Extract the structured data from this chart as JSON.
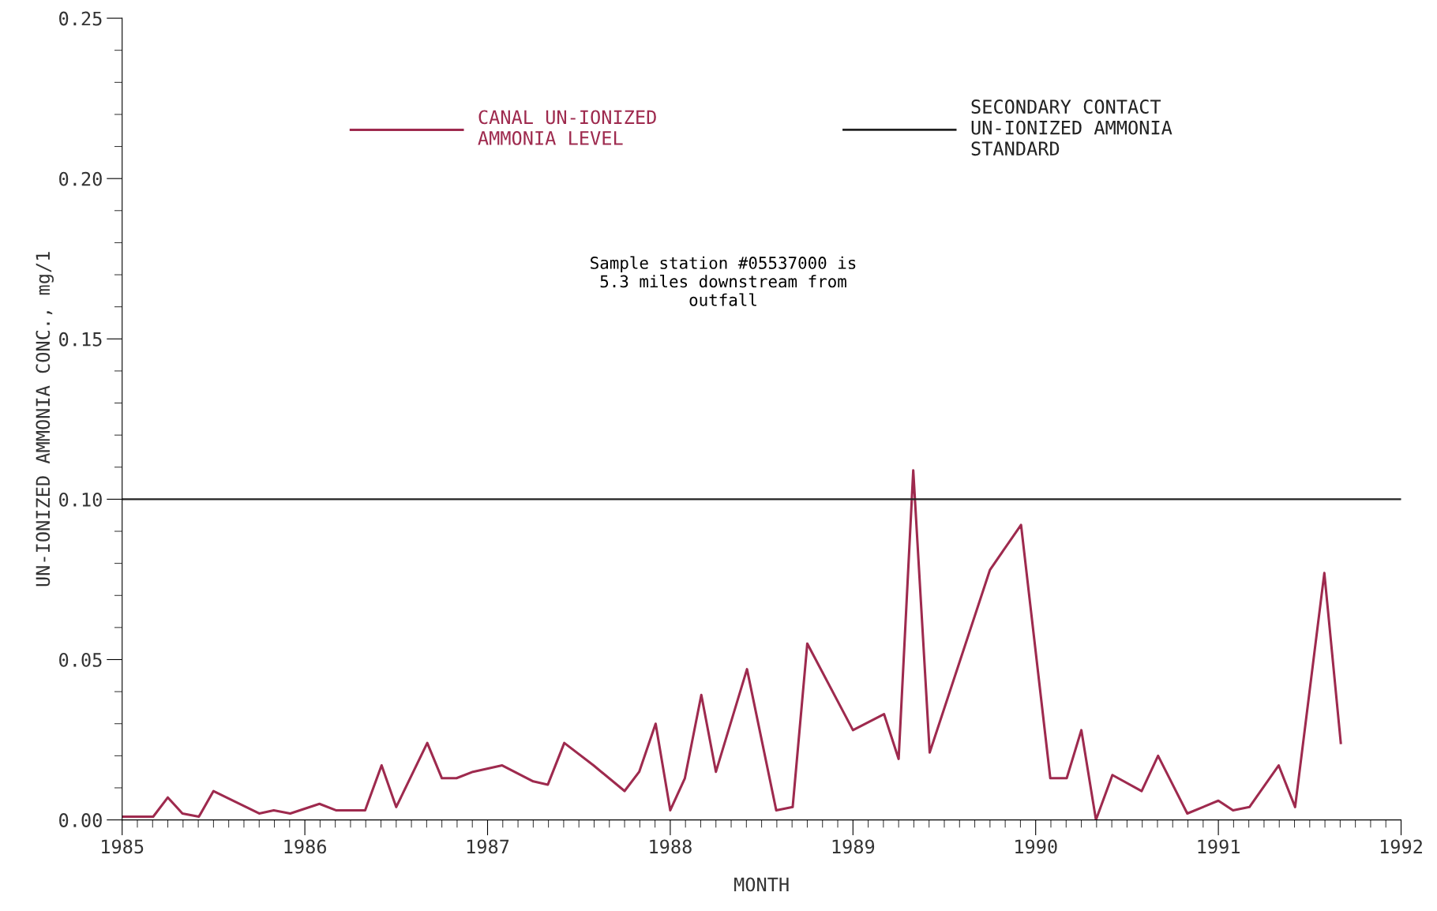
{
  "chart_data": {
    "type": "line",
    "xlabel": "MONTH",
    "ylabel": "UN-IONIZED AMMONIA CONC., mg/1",
    "xlim": [
      1985,
      1992
    ],
    "xticks": [
      1985,
      1986,
      1987,
      1988,
      1989,
      1990,
      1991,
      1992
    ],
    "ylim": [
      0,
      0.25
    ],
    "yticks": [
      {
        "value": 0,
        "label": "0.00"
      },
      {
        "value": 0.05,
        "label": "0.05"
      },
      {
        "value": 0.1,
        "label": "0.10"
      },
      {
        "value": 0.15,
        "label": "0.15"
      },
      {
        "value": 0.2,
        "label": "0.20"
      },
      {
        "value": 0.25,
        "label": "0.25"
      }
    ],
    "series": [
      {
        "name": "CANAL UN-IONIZED\nAMMONIA LEVEL",
        "color": "#9e2a4e",
        "x": [
          1985.0,
          1985.17,
          1985.25,
          1985.33,
          1985.42,
          1985.5,
          1985.75,
          1985.83,
          1985.92,
          1986.08,
          1986.17,
          1986.33,
          1986.42,
          1986.5,
          1986.67,
          1986.75,
          1986.83,
          1986.92,
          1987.08,
          1987.25,
          1987.33,
          1987.42,
          1987.58,
          1987.75,
          1987.83,
          1987.92,
          1988.0,
          1988.08,
          1988.17,
          1988.25,
          1988.42,
          1988.58,
          1988.67,
          1988.75,
          1989.0,
          1989.17,
          1989.25,
          1989.33,
          1989.42,
          1989.75,
          1989.92,
          1990.08,
          1990.17,
          1990.25,
          1990.33,
          1990.42,
          1990.58,
          1990.67,
          1990.83,
          1991.0,
          1991.08,
          1991.17,
          1991.33,
          1991.42,
          1991.58,
          1991.67
        ],
        "values": [
          0.001,
          0.001,
          0.007,
          0.002,
          0.001,
          0.009,
          0.002,
          0.003,
          0.002,
          0.005,
          0.003,
          0.003,
          0.017,
          0.004,
          0.024,
          0.013,
          0.013,
          0.015,
          0.017,
          0.012,
          0.011,
          0.024,
          0.017,
          0.009,
          0.015,
          0.03,
          0.003,
          0.013,
          0.039,
          0.015,
          0.047,
          0.003,
          0.004,
          0.055,
          0.028,
          0.033,
          0.019,
          0.109,
          0.021,
          0.078,
          0.092,
          0.013,
          0.013,
          0.028,
          0.0,
          0.014,
          0.009,
          0.02,
          0.002,
          0.006,
          0.003,
          0.004,
          0.017,
          0.004,
          0.077,
          0.024
        ]
      }
    ],
    "ref_lines": [
      {
        "axis": "y",
        "value": 0.1,
        "label": "SECONDARY CONTACT\nUN-IONIZED AMMONIA\nSTANDARD",
        "color": "#222222",
        "line_style": "solid"
      }
    ],
    "annotations": [
      "Sample station #05537000 is\n5.3 miles downstream from\noutfall"
    ],
    "legend": "top",
    "grid": false,
    "marker": "none",
    "line_style": "solid"
  }
}
